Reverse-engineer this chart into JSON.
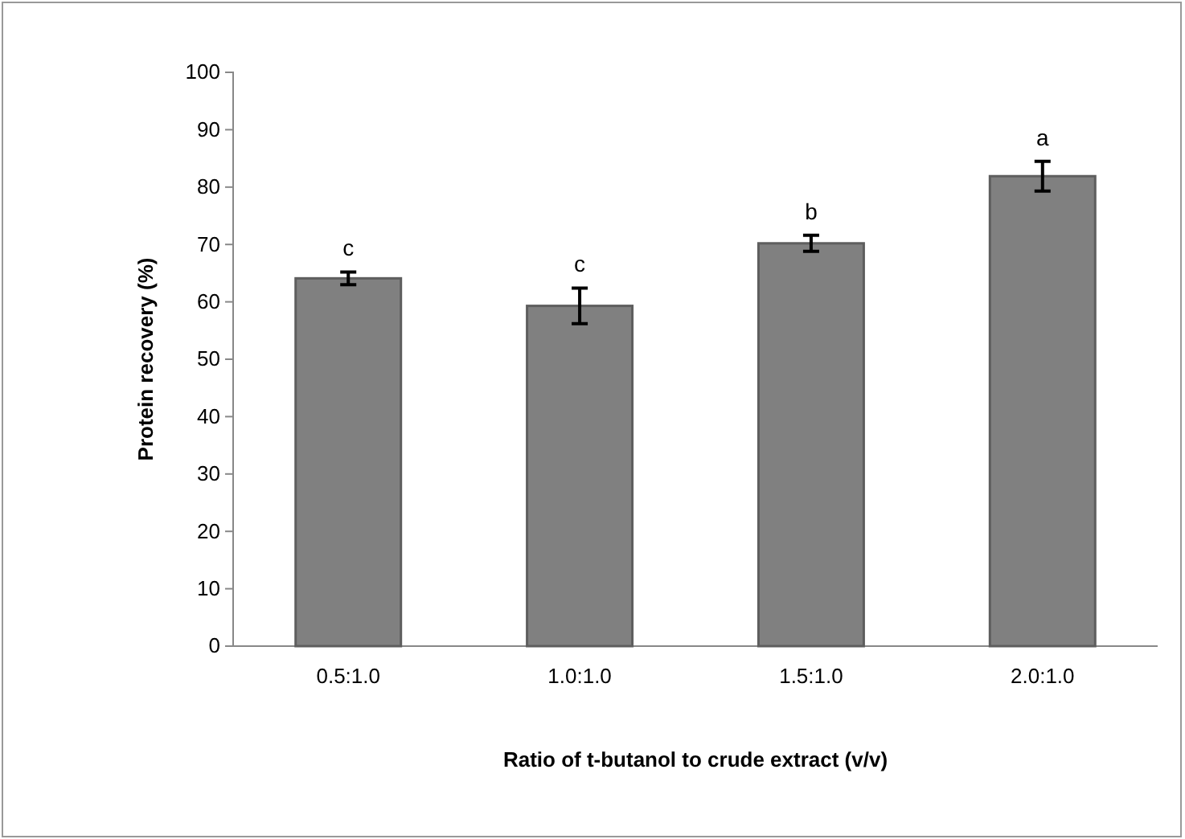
{
  "chart_data": {
    "type": "bar",
    "xlabel": "Ratio of t-butanol to crude extract (v/v)",
    "ylabel": "Protein recovery (%)",
    "categories": [
      "0.5:1.0",
      "1.0:1.0",
      "1.5:1.0",
      "2.0:1.0"
    ],
    "values": [
      64.1,
      59.3,
      70.2,
      81.9
    ],
    "errors": [
      1.1,
      3.1,
      1.4,
      2.6
    ],
    "color": "#808080",
    "ylim": [
      0,
      100
    ],
    "yticks": [
      0,
      10,
      20,
      30,
      40,
      50,
      60,
      70,
      80,
      90,
      100
    ],
    "annotations": [
      "c",
      "c",
      "b",
      "a"
    ]
  }
}
